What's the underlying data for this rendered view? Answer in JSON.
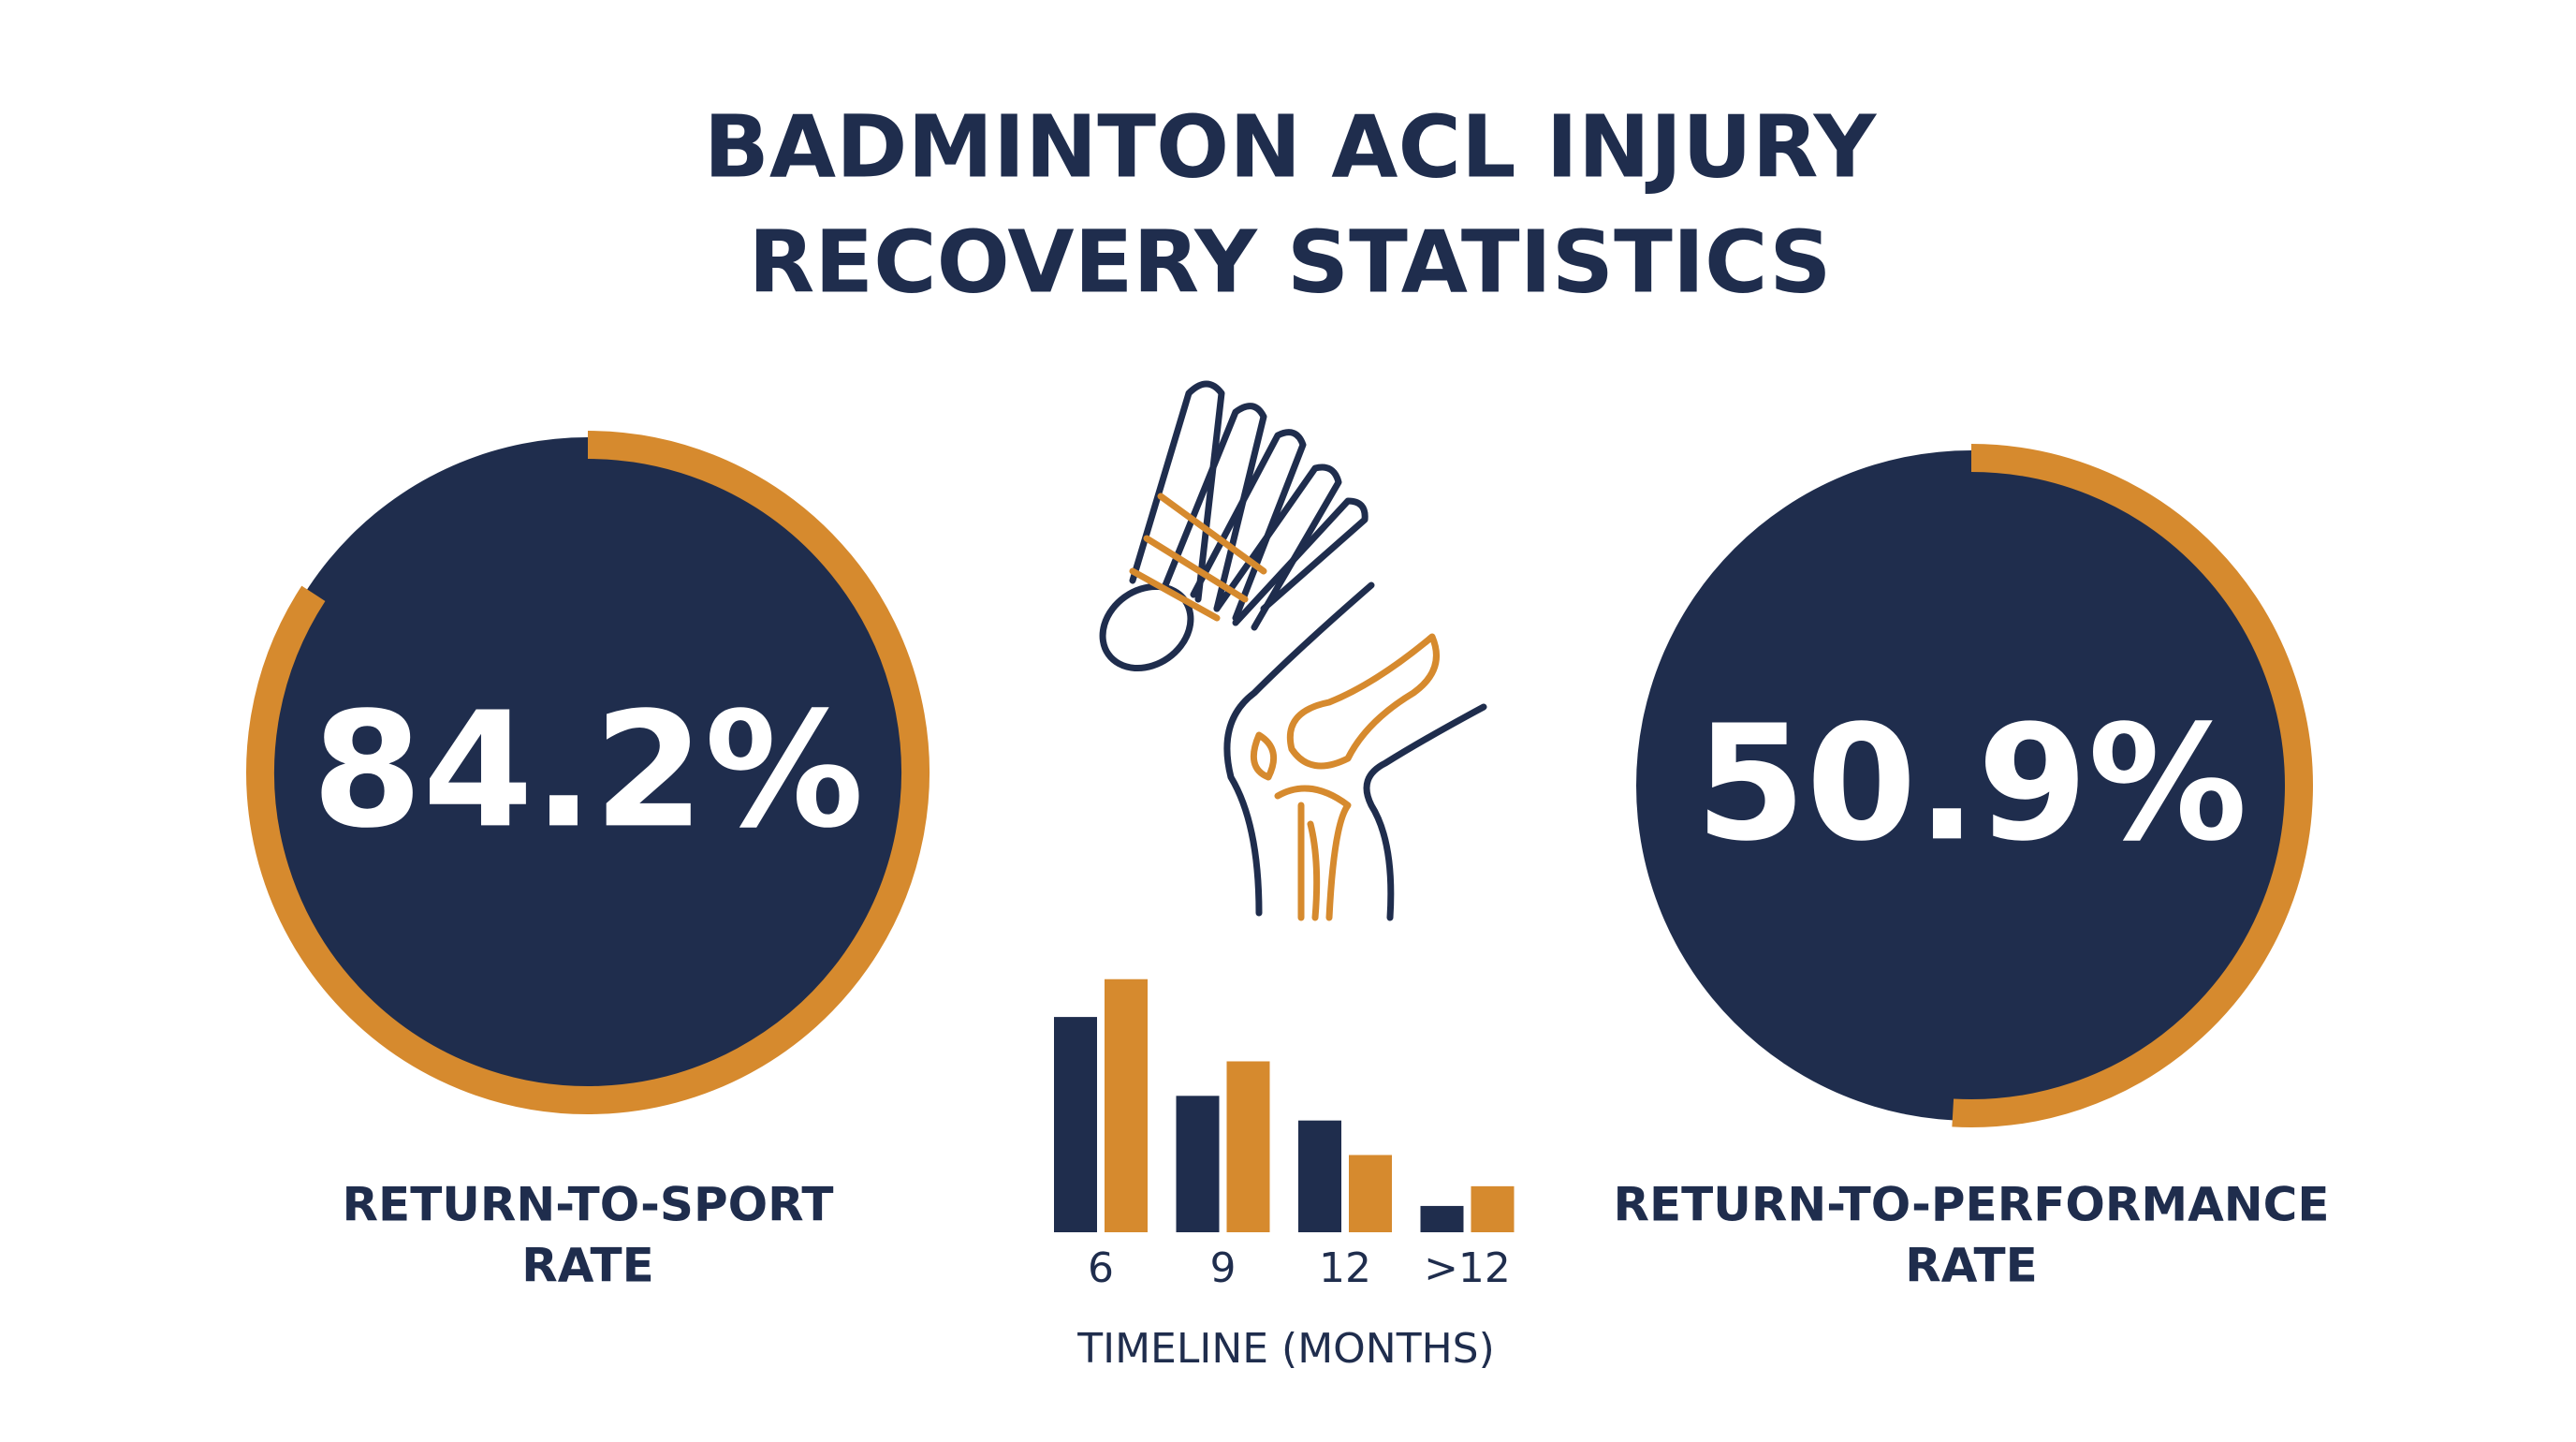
{
  "title": [
    "BADMINTON ACL INJURY",
    "RECOVERY STATISTICS"
  ],
  "chart_data": [
    {
      "type": "gauge",
      "values": [
        84.2
      ],
      "value_labels": [
        "84.2%"
      ],
      "label": [
        "RETURN-TO-SPORT",
        "RATE"
      ],
      "ylim": [
        0,
        100
      ],
      "color": "#d68a2e",
      "fill": "#1f2d4d"
    },
    {
      "type": "bar",
      "categories": [
        "6",
        "9",
        "12",
        ">12"
      ],
      "xlabel": "TIMELINE (MONTHS)",
      "series": [
        {
          "color": "#1f2d4d",
          "values": [
            131,
            83,
            68,
            16
          ]
        },
        {
          "color": "#d68a2e",
          "values": [
            154,
            104,
            47,
            28
          ]
        }
      ]
    },
    {
      "type": "gauge",
      "values": [
        50.9
      ],
      "value_labels": [
        "50.9%"
      ],
      "label": [
        "RETURN-TO-PERFORMANCE",
        "RATE"
      ],
      "ylim": [
        0,
        100
      ],
      "color": "#d68a2e",
      "fill": "#1f2d4d"
    }
  ]
}
